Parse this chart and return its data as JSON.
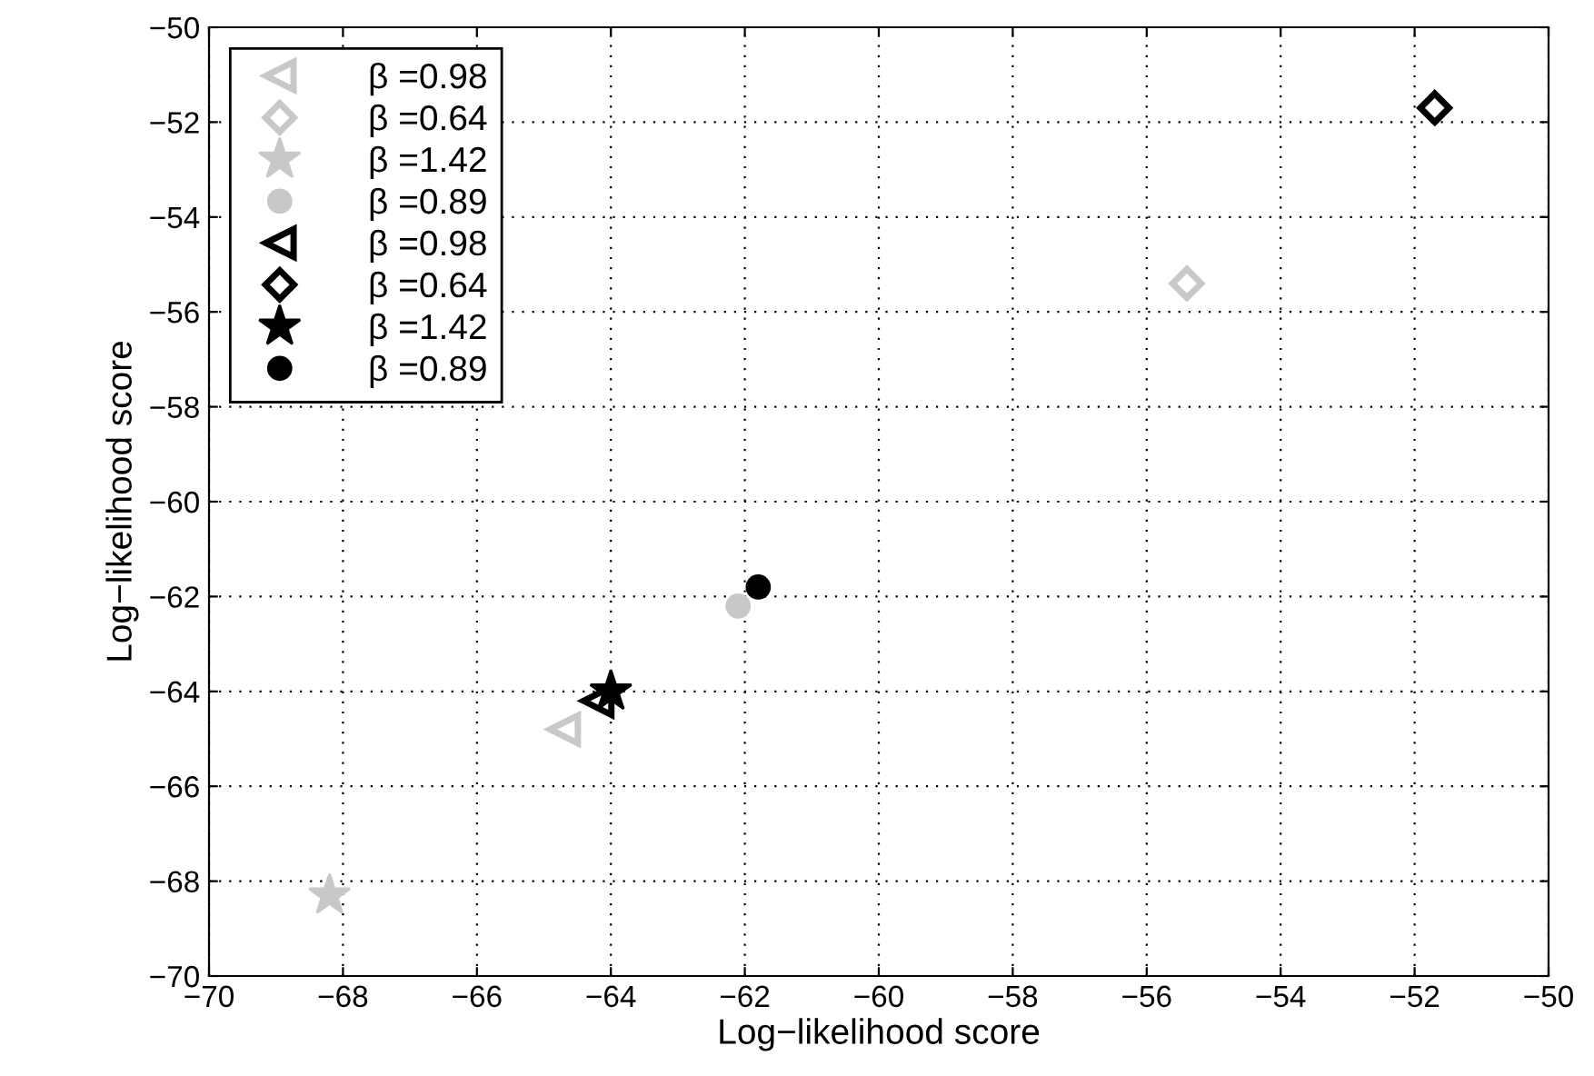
{
  "chart_data": {
    "type": "scatter",
    "xlabel": "Log−likelihood score",
    "ylabel": "Log−likelihood score",
    "xlim": [
      -70,
      -50
    ],
    "ylim": [
      -70,
      -50
    ],
    "xticks": [
      {
        "value": -70,
        "label": "−70"
      },
      {
        "value": -68,
        "label": "−68"
      },
      {
        "value": -66,
        "label": "−66"
      },
      {
        "value": -64,
        "label": "−64"
      },
      {
        "value": -62,
        "label": "−62"
      },
      {
        "value": -60,
        "label": "−60"
      },
      {
        "value": -58,
        "label": "−58"
      },
      {
        "value": -56,
        "label": "−56"
      },
      {
        "value": -54,
        "label": "−54"
      },
      {
        "value": -52,
        "label": "−52"
      },
      {
        "value": -50,
        "label": "−50"
      }
    ],
    "yticks": [
      {
        "value": -70,
        "label": "−70"
      },
      {
        "value": -68,
        "label": "−68"
      },
      {
        "value": -66,
        "label": "−66"
      },
      {
        "value": -64,
        "label": "−64"
      },
      {
        "value": -62,
        "label": "−62"
      },
      {
        "value": -60,
        "label": "−60"
      },
      {
        "value": -58,
        "label": "−58"
      },
      {
        "value": -56,
        "label": "−56"
      },
      {
        "value": -54,
        "label": "−54"
      },
      {
        "value": -52,
        "label": "−52"
      },
      {
        "value": -50,
        "label": "−50"
      }
    ],
    "grid": true,
    "legend": "top left",
    "series": [
      {
        "name": "β =0.98",
        "color": "#c8c8c8",
        "marker": "triangle",
        "x": [
          -64.7
        ],
        "values": [
          -64.8
        ]
      },
      {
        "name": "β =0.64",
        "color": "#c8c8c8",
        "marker": "diamond",
        "x": [
          -55.4
        ],
        "values": [
          -55.4
        ]
      },
      {
        "name": "β =1.42",
        "color": "#c8c8c8",
        "marker": "star",
        "x": [
          -68.2
        ],
        "values": [
          -68.3
        ]
      },
      {
        "name": "β =0.89",
        "color": "#c8c8c8",
        "marker": "circle",
        "x": [
          -62.1
        ],
        "values": [
          -62.2
        ]
      },
      {
        "name": "β =0.98",
        "color": "#000000",
        "marker": "triangle",
        "x": [
          -64.2
        ],
        "values": [
          -64.2
        ]
      },
      {
        "name": "β =0.64",
        "color": "#000000",
        "marker": "diamond",
        "x": [
          -51.7
        ],
        "values": [
          -51.7
        ]
      },
      {
        "name": "β =1.42",
        "color": "#000000",
        "marker": "star",
        "x": [
          -64.0
        ],
        "values": [
          -64.0
        ]
      },
      {
        "name": "β =0.89",
        "color": "#000000",
        "marker": "circle",
        "x": [
          -61.8
        ],
        "values": [
          -61.8
        ]
      }
    ]
  }
}
